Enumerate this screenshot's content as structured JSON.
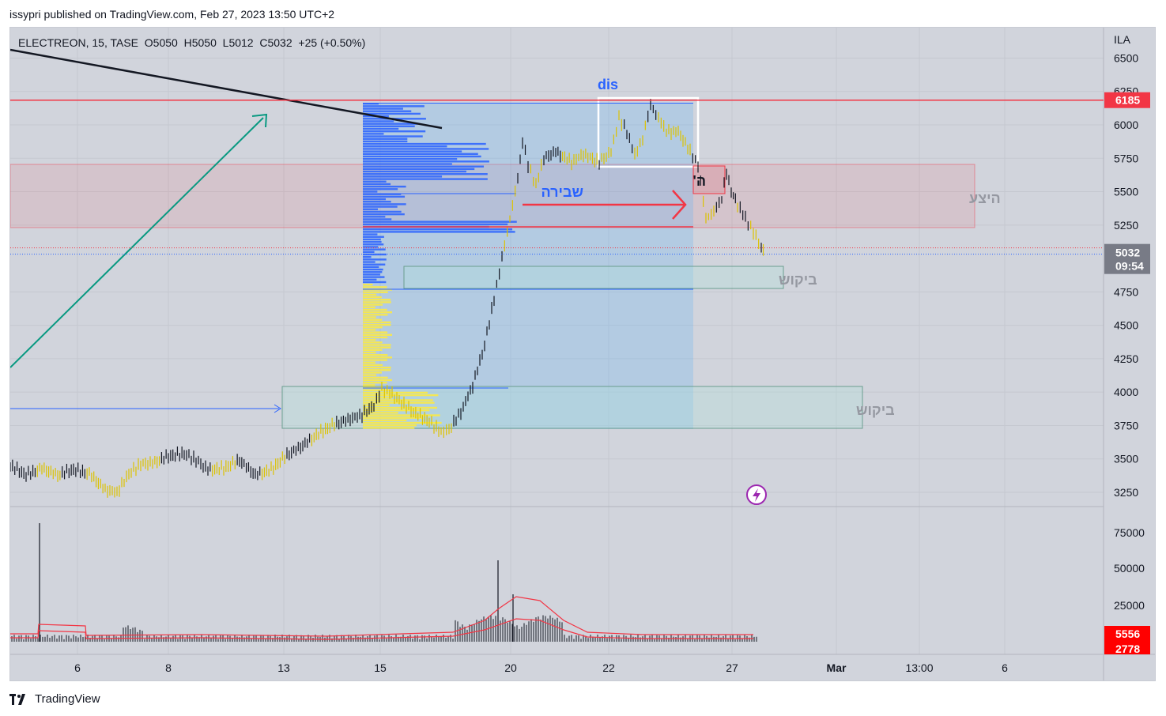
{
  "header": {
    "text": "issypri published on TradingView.com, Feb 27, 2023 13:50 UTC+2"
  },
  "legend": {
    "symbol": "ELECTREON",
    "interval": "15",
    "exchange": "TASE",
    "open": "O5050",
    "high": "H5050",
    "low": "L5012",
    "close": "C5032",
    "change": "+25 (+0.50%)"
  },
  "footer": {
    "brand": "TradingView"
  },
  "chart_data": {
    "type": "line",
    "currency": "ILA",
    "price_ticks": [
      6500,
      6250,
      6000,
      5750,
      5500,
      5250,
      4750,
      4500,
      4250,
      4000,
      3750,
      3500,
      3250
    ],
    "volume_ticks": [
      "75000",
      "50000",
      "25000"
    ],
    "x_ticks": [
      "6",
      "8",
      "13",
      "15",
      "20",
      "22",
      "27",
      "Mar",
      "13:00",
      "6"
    ],
    "price_path": [
      [
        0,
        3450
      ],
      [
        20,
        3380
      ],
      [
        40,
        3430
      ],
      [
        60,
        3380
      ],
      [
        80,
        3420
      ],
      [
        100,
        3390
      ],
      [
        120,
        3270
      ],
      [
        135,
        3250
      ],
      [
        150,
        3390
      ],
      [
        165,
        3460
      ],
      [
        180,
        3470
      ],
      [
        200,
        3520
      ],
      [
        220,
        3540
      ],
      [
        235,
        3490
      ],
      [
        250,
        3420
      ],
      [
        270,
        3430
      ],
      [
        290,
        3490
      ],
      [
        310,
        3380
      ],
      [
        330,
        3420
      ],
      [
        350,
        3530
      ],
      [
        370,
        3600
      ],
      [
        390,
        3690
      ],
      [
        410,
        3760
      ],
      [
        430,
        3800
      ],
      [
        445,
        3830
      ],
      [
        460,
        3900
      ],
      [
        470,
        4020
      ],
      [
        480,
        4000
      ],
      [
        495,
        3920
      ],
      [
        510,
        3850
      ],
      [
        530,
        3780
      ],
      [
        545,
        3700
      ],
      [
        555,
        3720
      ],
      [
        570,
        3850
      ],
      [
        585,
        4050
      ],
      [
        600,
        4350
      ],
      [
        612,
        4700
      ],
      [
        622,
        5000
      ],
      [
        632,
        5300
      ],
      [
        642,
        5600
      ],
      [
        648,
        5880
      ],
      [
        655,
        5700
      ],
      [
        665,
        5550
      ],
      [
        675,
        5750
      ],
      [
        690,
        5800
      ],
      [
        710,
        5720
      ],
      [
        725,
        5780
      ],
      [
        745,
        5720
      ],
      [
        760,
        5800
      ],
      [
        770,
        6050
      ],
      [
        780,
        5950
      ],
      [
        790,
        5770
      ],
      [
        800,
        5900
      ],
      [
        810,
        6150
      ],
      [
        820,
        6050
      ],
      [
        830,
        5950
      ],
      [
        845,
        5950
      ],
      [
        860,
        5800
      ],
      [
        870,
        5700
      ],
      [
        880,
        5300
      ],
      [
        890,
        5350
      ],
      [
        900,
        5450
      ],
      [
        906,
        5650
      ],
      [
        912,
        5500
      ],
      [
        920,
        5400
      ],
      [
        930,
        5300
      ],
      [
        940,
        5200
      ],
      [
        950,
        5080
      ],
      [
        955,
        5032
      ]
    ],
    "resistance_line": {
      "price": 6185,
      "label": "6185"
    },
    "last_price": {
      "price": 5032,
      "label": "5032",
      "countdown": "09:54"
    },
    "volume_labels": [
      "5556",
      "2778"
    ],
    "annotations": {
      "supply_zone": "היצע",
      "demand_zone_upper": "ביקוש",
      "demand_zone_lower": "ביקוש",
      "breakout_label": "שבירה",
      "dis_label": "dis",
      "he_label": "ה'"
    },
    "colors": {
      "up": "#ffeb3b",
      "down": "#131722",
      "resistance": "#f23645",
      "trendline": "#131722",
      "arrow": "#089981",
      "profile_up": "#2962ff",
      "profile_down": "#ffeb3b"
    }
  }
}
